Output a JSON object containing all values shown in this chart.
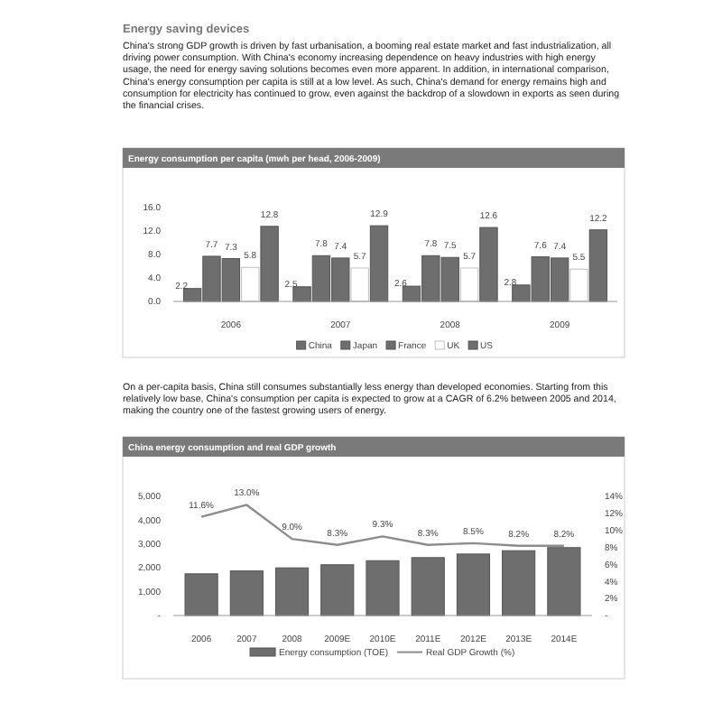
{
  "chart_data": [
    {
      "type": "other",
      "title": "Energy saving devices",
      "annotations": [
        "China's strong GDP growth is driven by fast urbanisation, a booming real estate market and fast industrialization, all driving power consumption. With China's economy increasing dependence on heavy industries with high energy usage, the need for energy saving solutions becomes even more apparent. In addition, in international comparison, China's energy consumption per capita is still at a low level. As such, China's demand for energy remains high and consumption for electricity has continued to grow, even against the backdrop of a slowdown in exports as seen during the financial crises."
      ]
    },
    {
      "type": "bar",
      "title": "Energy consumption per capita (mwh per head, 2006-2009)",
      "categories": [
        "2006",
        "2007",
        "2008",
        "2009"
      ],
      "series": [
        {
          "name": "China",
          "color": "#6e6e6e",
          "values": [
            2.2,
            2.5,
            2.6,
            2.8
          ]
        },
        {
          "name": "Japan",
          "color": "#6e6e6e",
          "values": [
            7.7,
            7.8,
            7.8,
            7.6
          ]
        },
        {
          "name": "France",
          "color": "#6e6e6e",
          "values": [
            7.3,
            7.4,
            7.5,
            7.4
          ]
        },
        {
          "name": "UK",
          "color": "#ffffff",
          "values": [
            5.8,
            5.7,
            5.7,
            5.5
          ]
        },
        {
          "name": "US",
          "color": "#6e6e6e",
          "values": [
            12.8,
            12.9,
            12.6,
            12.2
          ]
        }
      ],
      "ylim": [
        0,
        16
      ],
      "yticks": [
        {
          "value": 0,
          "label": "0.0"
        },
        {
          "value": 4,
          "label": "4.0"
        },
        {
          "value": 8,
          "label": "8.0"
        },
        {
          "value": 12,
          "label": "12.0"
        },
        {
          "value": 16,
          "label": "16.0"
        }
      ],
      "data_labels": true,
      "legend": "bottom"
    },
    {
      "type": "other",
      "annotations": [
        "On a per-capita basis, China still consumes substantially less energy than developed economies. Starting from this relatively low base, China's consumption per capita is expected to grow at a CAGR of 6.2% between 2005 and 2014, making the country one of the fastest growing users of energy."
      ]
    },
    {
      "type": "bar",
      "title": "China energy consumption and real GDP growth",
      "categories": [
        "2006",
        "2007",
        "2008",
        "2009E",
        "2010E",
        "2011E",
        "2012E",
        "2013E",
        "2014E"
      ],
      "series": [
        {
          "name": "Energy consumption (TOE)",
          "color": "#6e6e6e",
          "values": [
            1750,
            1870,
            2000,
            2130,
            2300,
            2430,
            2580,
            2720,
            2850
          ]
        },
        {
          "name": "Real GDP Growth (%)",
          "type": "line",
          "axis": "y2",
          "color": "#8c8c8c",
          "marker": "none",
          "values": [
            11.6,
            13.0,
            9.0,
            8.3,
            9.3,
            8.3,
            8.5,
            8.2,
            8.2
          ],
          "value_labels": [
            "11.6%",
            "13.0%",
            "9.0%",
            "8.3%",
            "9.3%",
            "8.3%",
            "8.5%",
            "8.2%",
            "8.2%"
          ]
        }
      ],
      "ylim": [
        0,
        5000
      ],
      "yticks": [
        {
          "value": 0,
          "label": "-"
        },
        {
          "value": 1000,
          "label": "1,000"
        },
        {
          "value": 2000,
          "label": "2,000"
        },
        {
          "value": 3000,
          "label": "3,000"
        },
        {
          "value": 4000,
          "label": "4,000"
        },
        {
          "value": 5000,
          "label": "5,000"
        }
      ],
      "y2lim": [
        0,
        14
      ],
      "y2ticks": [
        {
          "value": 0,
          "label": "-"
        },
        {
          "value": 2,
          "label": "2%"
        },
        {
          "value": 4,
          "label": "4%"
        },
        {
          "value": 6,
          "label": "6%"
        },
        {
          "value": 8,
          "label": "8%"
        },
        {
          "value": 10,
          "label": "10%"
        },
        {
          "value": 12,
          "label": "12%"
        },
        {
          "value": 14,
          "label": "14%"
        }
      ],
      "legend": "bottom"
    }
  ]
}
